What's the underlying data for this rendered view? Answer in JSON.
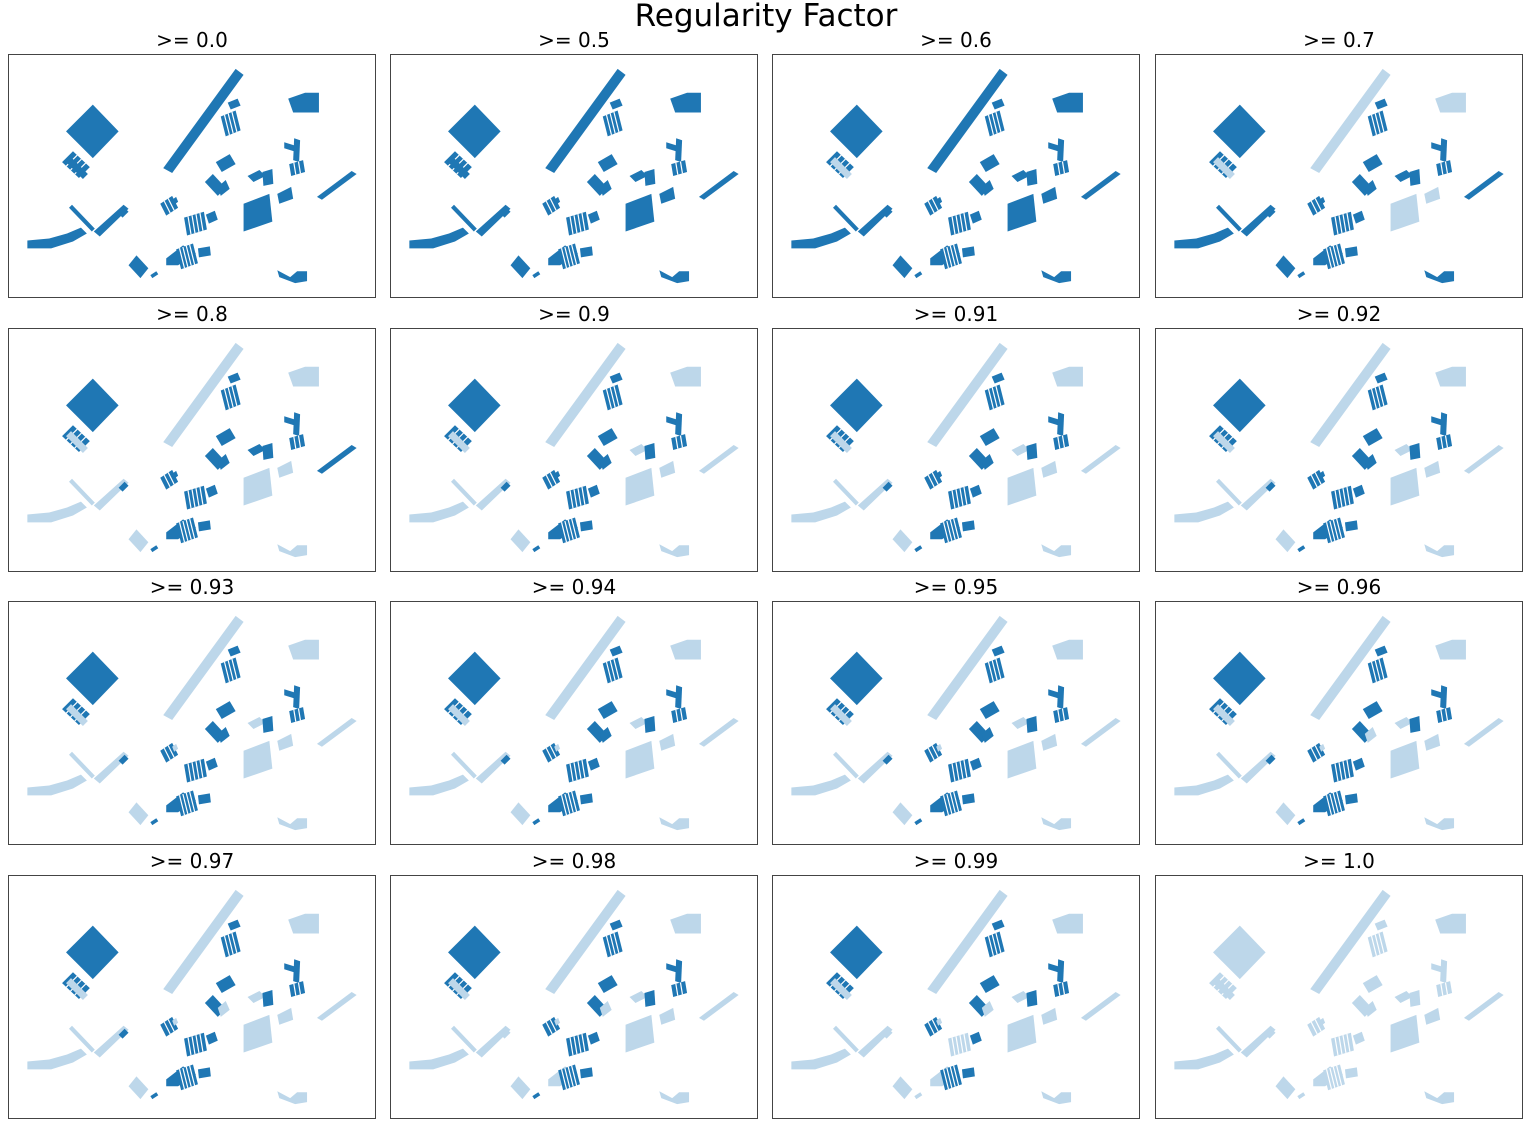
{
  "title": "Regularity Factor",
  "colors": {
    "dark": "#1f77b4",
    "light": "#bdd7ea"
  },
  "panels": [
    {
      "label": ">= 0.0",
      "threshold": 0.0
    },
    {
      "label": ">= 0.5",
      "threshold": 0.5
    },
    {
      "label": ">= 0.6",
      "threshold": 0.6
    },
    {
      "label": ">= 0.7",
      "threshold": 0.7
    },
    {
      "label": ">= 0.8",
      "threshold": 0.8
    },
    {
      "label": ">= 0.9",
      "threshold": 0.9
    },
    {
      "label": ">= 0.91",
      "threshold": 0.91
    },
    {
      "label": ">= 0.92",
      "threshold": 0.92
    },
    {
      "label": ">= 0.93",
      "threshold": 0.93
    },
    {
      "label": ">= 0.94",
      "threshold": 0.94
    },
    {
      "label": ">= 0.95",
      "threshold": 0.95
    },
    {
      "label": ">= 0.96",
      "threshold": 0.96
    },
    {
      "label": ">= 0.97",
      "threshold": 0.97
    },
    {
      "label": ">= 0.98",
      "threshold": 0.98
    },
    {
      "label": ">= 0.99",
      "threshold": 0.99
    },
    {
      "label": ">= 1.0",
      "threshold": 1.0
    }
  ]
}
